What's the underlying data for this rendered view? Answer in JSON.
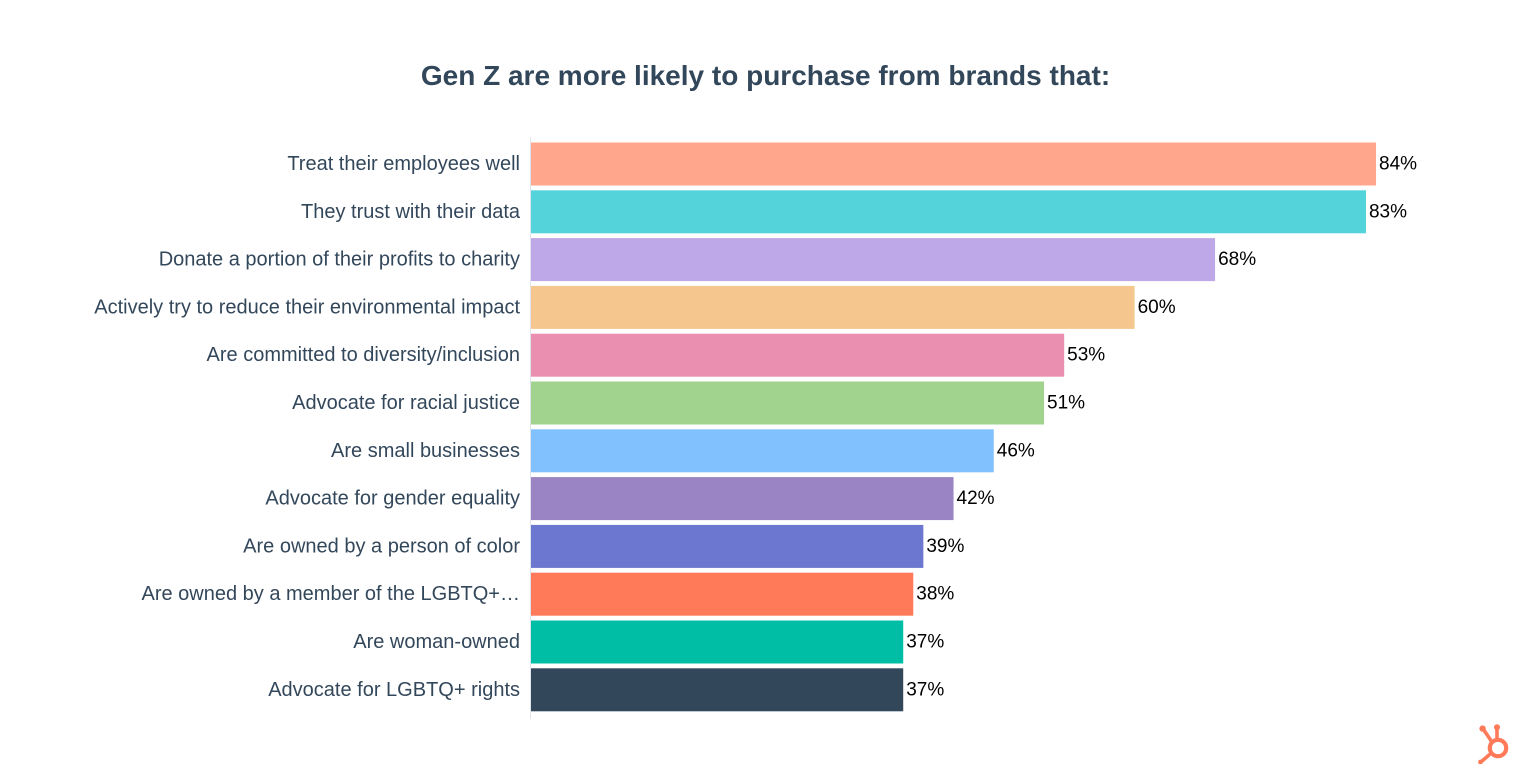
{
  "chart_data": {
    "type": "bar",
    "orientation": "horizontal",
    "title": "Gen Z are more likely to purchase from brands that:",
    "categories": [
      "Treat their employees well",
      "They trust with their data",
      "Donate a portion of their profits to charity",
      "Actively try to reduce their environmental impact",
      "Are committed to diversity/inclusion",
      "Advocate for racial justice",
      "Are small businesses",
      "Advocate for gender equality",
      "Are owned by a person of color",
      "Are owned by a member of the LGBTQ+…",
      "Are woman-owned",
      "Advocate for LGBTQ+ rights"
    ],
    "values": [
      84,
      83,
      68,
      60,
      53,
      51,
      46,
      42,
      39,
      38,
      37,
      37
    ],
    "value_labels": [
      "84%",
      "83%",
      "68%",
      "60%",
      "53%",
      "51%",
      "46%",
      "42%",
      "39%",
      "38%",
      "37%",
      "37%"
    ],
    "colors": [
      "#ffa68d",
      "#54d4da",
      "#bea8e7",
      "#f5c78f",
      "#eb8fb1",
      "#a1d38f",
      "#81c1fd",
      "#9a84c3",
      "#6c77cf",
      "#ff7a59",
      "#00bda5",
      "#33475b"
    ],
    "xlabel": "",
    "ylabel": "",
    "xlim": [
      0,
      100
    ],
    "grid": false,
    "legend": "none"
  },
  "branding": {
    "logo_icon": "hubspot-sprocket-icon",
    "logo_color": "#ff7a59"
  }
}
